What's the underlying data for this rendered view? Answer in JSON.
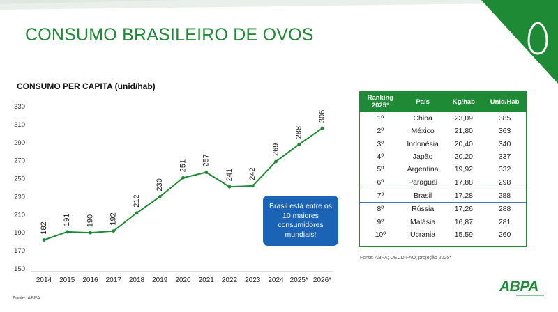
{
  "slide": {
    "title": "CONSUMO BRASILEIRO DE OVOS",
    "chart_source": "Fonte: ABPA",
    "table_source": "Fonte: ABPA; OECD-FAO, projeção 2025*",
    "callout": "Brasil está entre os 10 maiores consumidores mundiais!",
    "logo": "ABPA",
    "colors": {
      "brand_green": "#1e8a35",
      "callout_blue": "#1a63b5",
      "highlight_border": "#3a78c2"
    },
    "icons": [
      "egg-icon"
    ]
  },
  "chart_data": {
    "type": "line",
    "title": "CONSUMO PER CAPITA (unid/hab)",
    "xlabel": "",
    "ylabel": "",
    "categories": [
      "2014",
      "2015",
      "2016",
      "2017",
      "2018",
      "2019",
      "2020",
      "2021",
      "2022",
      "2023",
      "2024",
      "2025*",
      "2026*"
    ],
    "values": [
      182,
      191,
      190,
      192,
      212,
      230,
      251,
      257,
      241,
      242,
      269,
      288,
      306
    ],
    "ylim": [
      150,
      330
    ],
    "yticks": [
      150,
      170,
      190,
      210,
      230,
      250,
      270,
      290,
      310,
      330
    ],
    "grid": false,
    "data_labels": true,
    "line_color": "#1e8a35"
  },
  "ranking_table": {
    "headers": [
      "Ranking 2025*",
      "País",
      "Kg/hab",
      "Unid/Hab"
    ],
    "rows": [
      [
        "1º",
        "China",
        "23,09",
        "385"
      ],
      [
        "2º",
        "México",
        "21,80",
        "363"
      ],
      [
        "3º",
        "Indonésia",
        "20,40",
        "340"
      ],
      [
        "4º",
        "Japão",
        "20,20",
        "337"
      ],
      [
        "5º",
        "Argentina",
        "19,92",
        "332"
      ],
      [
        "6º",
        "Paraguai",
        "17,88",
        "298"
      ],
      [
        "7º",
        "Brasil",
        "17,28",
        "288"
      ],
      [
        "8º",
        "Rússia",
        "17,26",
        "288"
      ],
      [
        "9º",
        "Malásia",
        "16,87",
        "281"
      ],
      [
        "10º",
        "Ucrania",
        "15,59",
        "260"
      ]
    ],
    "highlight_row": 6
  }
}
